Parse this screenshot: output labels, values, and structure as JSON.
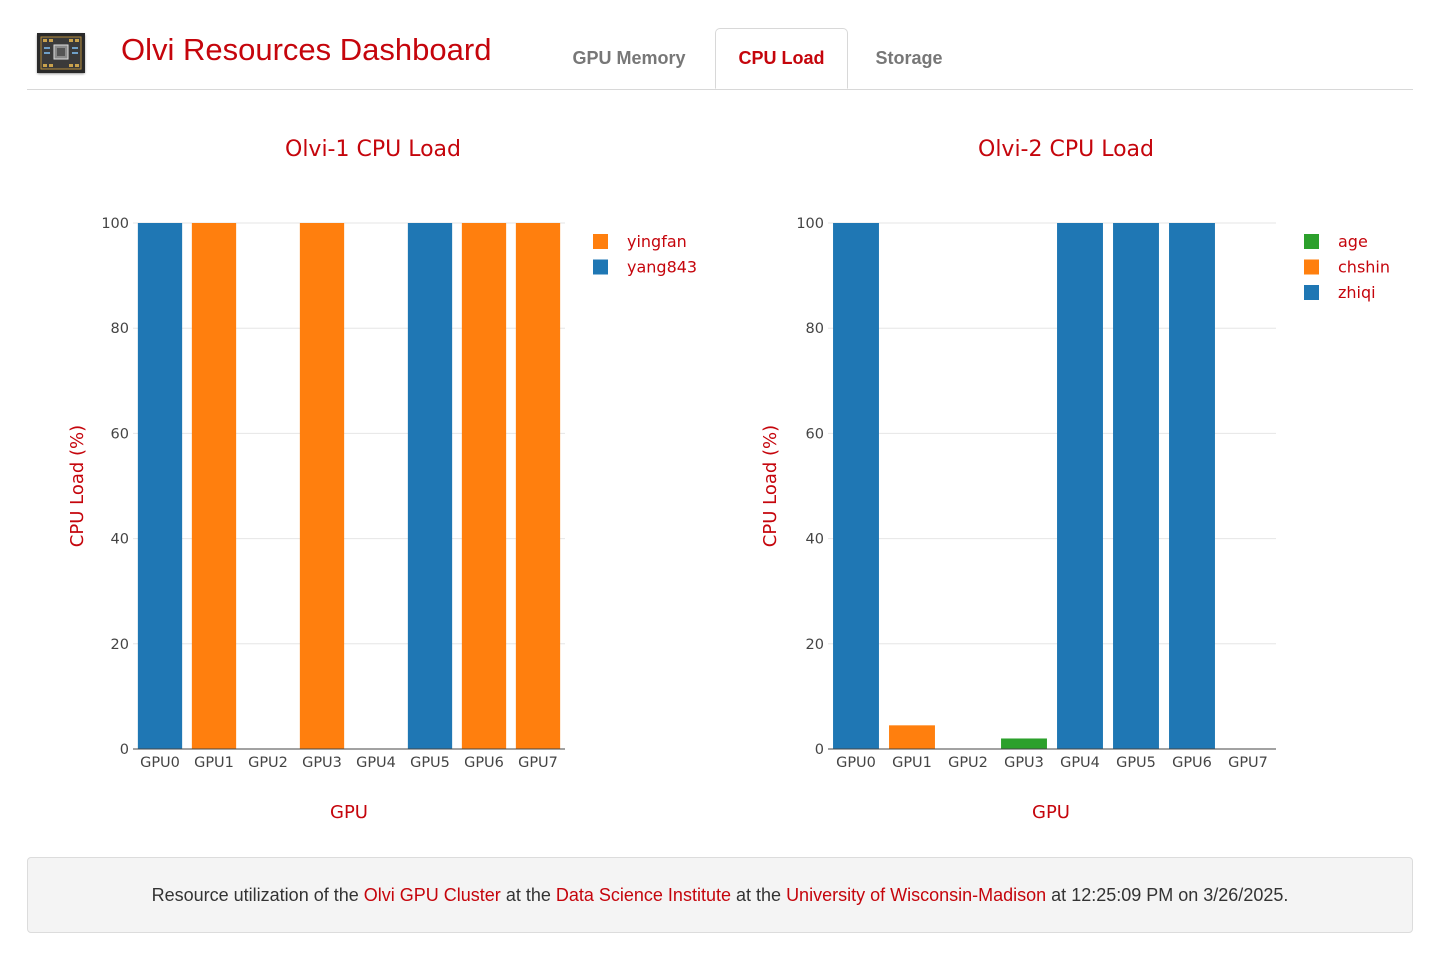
{
  "header": {
    "title": "Olvi Resources Dashboard",
    "logo_icon": "gpu-chip-icon",
    "tabs": [
      {
        "label": "GPU Memory",
        "active": false
      },
      {
        "label": "CPU Load",
        "active": true
      },
      {
        "label": "Storage",
        "active": false
      }
    ]
  },
  "colors": {
    "accent": "#c5050c",
    "blue": "#1f77b4",
    "orange": "#ff7f0e",
    "green": "#2ca02c"
  },
  "chart_data": [
    {
      "type": "bar",
      "title": "Olvi-1 CPU Load",
      "xlabel": "GPU",
      "ylabel": "CPU Load (%)",
      "ylim": [
        0,
        100
      ],
      "yticks": [
        0,
        20,
        40,
        60,
        80,
        100
      ],
      "grid": true,
      "legend_position": "top-right",
      "categories": [
        "GPU0",
        "GPU1",
        "GPU2",
        "GPU3",
        "GPU4",
        "GPU5",
        "GPU6",
        "GPU7"
      ],
      "series": [
        {
          "name": "yingfan",
          "color": "#ff7f0e",
          "values": [
            null,
            100,
            null,
            100,
            null,
            null,
            100,
            100
          ]
        },
        {
          "name": "yang843",
          "color": "#1f77b4",
          "values": [
            100,
            null,
            null,
            null,
            null,
            100,
            null,
            null
          ]
        }
      ]
    },
    {
      "type": "bar",
      "title": "Olvi-2 CPU Load",
      "xlabel": "GPU",
      "ylabel": "CPU Load (%)",
      "ylim": [
        0,
        100
      ],
      "yticks": [
        0,
        20,
        40,
        60,
        80,
        100
      ],
      "grid": true,
      "legend_position": "top-right",
      "categories": [
        "GPU0",
        "GPU1",
        "GPU2",
        "GPU3",
        "GPU4",
        "GPU5",
        "GPU6",
        "GPU7"
      ],
      "series": [
        {
          "name": "age",
          "color": "#2ca02c",
          "values": [
            null,
            null,
            null,
            2,
            null,
            null,
            null,
            null
          ]
        },
        {
          "name": "chshin",
          "color": "#ff7f0e",
          "values": [
            null,
            4.5,
            null,
            null,
            null,
            null,
            null,
            null
          ]
        },
        {
          "name": "zhiqi",
          "color": "#1f77b4",
          "values": [
            100,
            null,
            null,
            null,
            100,
            100,
            100,
            null
          ]
        }
      ]
    }
  ],
  "footer": {
    "prefix": "Resource utilization of the ",
    "link1": "Olvi GPU Cluster",
    "mid1": " at the ",
    "link2": "Data Science Institute",
    "mid2": " at the ",
    "link3": "University of Wisconsin-Madison",
    "mid3": " at ",
    "timestamp": "12:25:09 PM on 3/26/2025",
    "suffix": "."
  }
}
